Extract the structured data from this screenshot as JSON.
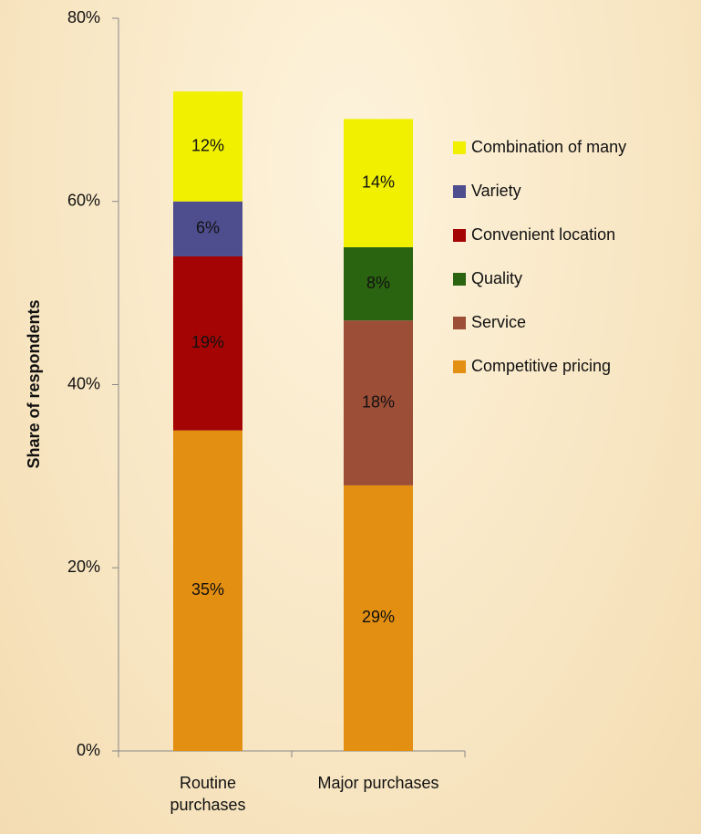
{
  "chart_data": {
    "type": "stacked_bar",
    "y_label": "Share of respondents",
    "categories": [
      "Routine purchases",
      "Major purchases"
    ],
    "series": [
      {
        "name": "Combination of many",
        "color": "#f0f000",
        "values": [
          12,
          14
        ],
        "value_labels": [
          "12%",
          "14%"
        ]
      },
      {
        "name": "Variety",
        "color": "#4e4e8e",
        "values": [
          6,
          null
        ],
        "value_labels": [
          "6%",
          null
        ]
      },
      {
        "name": "Convenient location",
        "color": "#a40404",
        "values": [
          19,
          null
        ],
        "value_labels": [
          "19%",
          null
        ]
      },
      {
        "name": "Quality",
        "color": "#2b6410",
        "values": [
          null,
          8
        ],
        "value_labels": [
          null,
          "8%"
        ]
      },
      {
        "name": "Service",
        "color": "#9c4e36",
        "values": [
          null,
          18
        ],
        "value_labels": [
          null,
          "18%"
        ]
      },
      {
        "name": "Competitive pricing",
        "color": "#e38f12",
        "values": [
          35,
          29
        ],
        "value_labels": [
          "35%",
          "29%"
        ]
      }
    ],
    "ylim": [
      0,
      80
    ],
    "yticks": [
      {
        "value": 0,
        "label": "0%"
      },
      {
        "value": 20,
        "label": "20%"
      },
      {
        "value": 40,
        "label": "40%"
      },
      {
        "value": 60,
        "label": "60%"
      },
      {
        "value": 80,
        "label": "80%"
      }
    ]
  }
}
